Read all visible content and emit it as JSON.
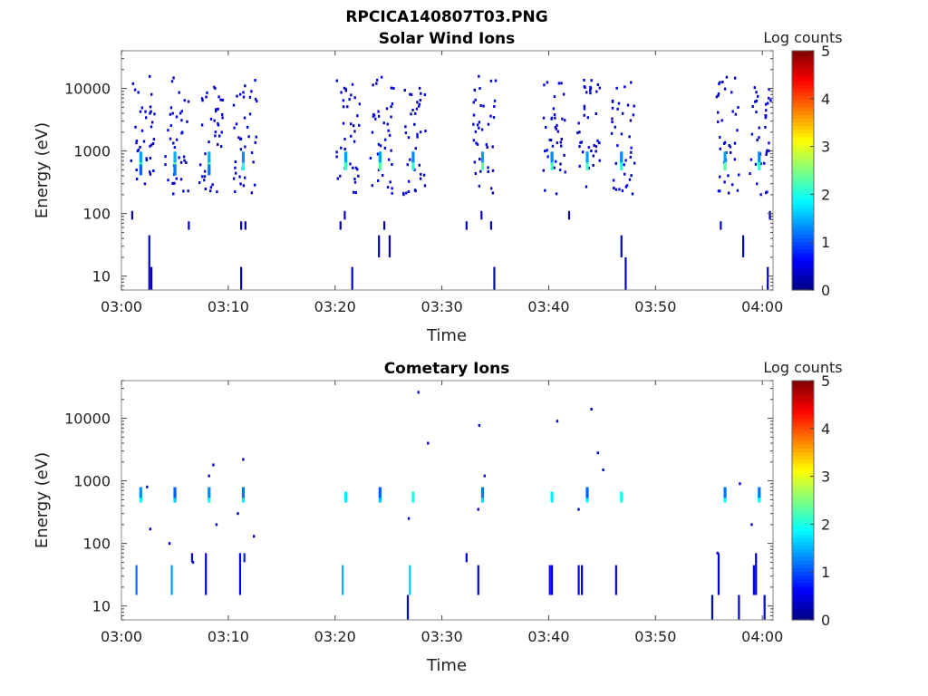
{
  "figure": {
    "title": "RPCICA140807T03.PNG"
  },
  "colorbar": {
    "label": "Log counts",
    "ticks": [
      0,
      1,
      2,
      3,
      4,
      5
    ],
    "colormap": "jet",
    "range": [
      0,
      5
    ]
  },
  "chart_data": [
    {
      "type": "heatmap",
      "title": "Solar Wind Ions",
      "xlabel": "Time",
      "ylabel": "Energy (eV)",
      "x_range_minutes": [
        0,
        61
      ],
      "x_ticks": [
        {
          "m": 0,
          "label": "03:00"
        },
        {
          "m": 10,
          "label": "03:10"
        },
        {
          "m": 20,
          "label": "03:20"
        },
        {
          "m": 30,
          "label": "03:30"
        },
        {
          "m": 40,
          "label": "03:40"
        },
        {
          "m": 50,
          "label": "03:50"
        },
        {
          "m": 60,
          "label": "04:00"
        }
      ],
      "y_scale": "log",
      "ylim": [
        6,
        40000
      ],
      "y_ticks": [
        {
          "v": 10,
          "label": "10"
        },
        {
          "v": 100,
          "label": "100"
        },
        {
          "v": 1000,
          "label": "1000"
        },
        {
          "v": 10000,
          "label": "10000"
        }
      ],
      "burst_minutes": [
        1.8,
        5.0,
        8.2,
        11.4,
        21.0,
        24.2,
        27.3,
        33.8,
        40.3,
        43.6,
        46.8,
        56.5,
        59.7
      ],
      "cells": [
        {
          "t": 1.8,
          "e": 600,
          "v": 2.2
        },
        {
          "t": 1.8,
          "e": 800,
          "v": 1.4
        },
        {
          "t": 1.8,
          "e": 500,
          "v": 1.1
        },
        {
          "t": 5.0,
          "e": 600,
          "v": 2.4
        },
        {
          "t": 5.0,
          "e": 800,
          "v": 1.5
        },
        {
          "t": 5.0,
          "e": 500,
          "v": 1.2
        },
        {
          "t": 8.2,
          "e": 600,
          "v": 2.3
        },
        {
          "t": 8.2,
          "e": 800,
          "v": 1.5
        },
        {
          "t": 8.2,
          "e": 500,
          "v": 1.2
        },
        {
          "t": 11.4,
          "e": 600,
          "v": 2.0
        },
        {
          "t": 11.4,
          "e": 800,
          "v": 1.3
        },
        {
          "t": 21.0,
          "e": 600,
          "v": 2.2
        },
        {
          "t": 21.0,
          "e": 800,
          "v": 1.4
        },
        {
          "t": 24.2,
          "e": 600,
          "v": 2.3
        },
        {
          "t": 24.2,
          "e": 800,
          "v": 1.4
        },
        {
          "t": 27.3,
          "e": 600,
          "v": 2.1
        },
        {
          "t": 27.3,
          "e": 800,
          "v": 1.3
        },
        {
          "t": 33.8,
          "e": 600,
          "v": 2.3
        },
        {
          "t": 33.8,
          "e": 800,
          "v": 1.4
        },
        {
          "t": 40.3,
          "e": 600,
          "v": 2.2
        },
        {
          "t": 40.3,
          "e": 800,
          "v": 1.3
        },
        {
          "t": 43.6,
          "e": 600,
          "v": 2.2
        },
        {
          "t": 43.6,
          "e": 800,
          "v": 1.4
        },
        {
          "t": 46.8,
          "e": 600,
          "v": 2.1
        },
        {
          "t": 46.8,
          "e": 800,
          "v": 1.3
        },
        {
          "t": 56.5,
          "e": 600,
          "v": 2.3
        },
        {
          "t": 56.5,
          "e": 800,
          "v": 1.4
        },
        {
          "t": 59.7,
          "e": 600,
          "v": 2.1
        },
        {
          "t": 59.7,
          "e": 800,
          "v": 1.3
        }
      ],
      "low_energy_streaks": [
        {
          "t": 2.6,
          "e1": 6,
          "e2": 45
        },
        {
          "t": 2.8,
          "e1": 6,
          "e2": 14
        },
        {
          "t": 1.0,
          "e1": 80,
          "e2": 110
        },
        {
          "t": 6.3,
          "e1": 55,
          "e2": 75
        },
        {
          "t": 11.2,
          "e1": 6,
          "e2": 14
        },
        {
          "t": 11.2,
          "e1": 55,
          "e2": 75
        },
        {
          "t": 11.6,
          "e1": 55,
          "e2": 75
        },
        {
          "t": 20.5,
          "e1": 55,
          "e2": 75
        },
        {
          "t": 20.9,
          "e1": 80,
          "e2": 110
        },
        {
          "t": 21.6,
          "e1": 6,
          "e2": 14
        },
        {
          "t": 24.1,
          "e1": 20,
          "e2": 45
        },
        {
          "t": 24.6,
          "e1": 55,
          "e2": 75
        },
        {
          "t": 25.1,
          "e1": 20,
          "e2": 45
        },
        {
          "t": 32.3,
          "e1": 55,
          "e2": 75
        },
        {
          "t": 33.7,
          "e1": 80,
          "e2": 110
        },
        {
          "t": 34.6,
          "e1": 55,
          "e2": 75
        },
        {
          "t": 34.9,
          "e1": 6,
          "e2": 14
        },
        {
          "t": 41.9,
          "e1": 80,
          "e2": 110
        },
        {
          "t": 46.8,
          "e1": 20,
          "e2": 45
        },
        {
          "t": 47.2,
          "e1": 6,
          "e2": 20
        },
        {
          "t": 56.1,
          "e1": 55,
          "e2": 75
        },
        {
          "t": 58.2,
          "e1": 20,
          "e2": 45
        },
        {
          "t": 60.5,
          "e1": 6,
          "e2": 14
        },
        {
          "t": 60.7,
          "e1": 80,
          "e2": 110
        }
      ]
    },
    {
      "type": "heatmap",
      "title": "Cometary Ions",
      "xlabel": "Time",
      "ylabel": "Energy (eV)",
      "x_range_minutes": [
        0,
        61
      ],
      "x_ticks": [
        {
          "m": 0,
          "label": "03:00"
        },
        {
          "m": 10,
          "label": "03:10"
        },
        {
          "m": 20,
          "label": "03:20"
        },
        {
          "m": 30,
          "label": "03:30"
        },
        {
          "m": 40,
          "label": "03:40"
        },
        {
          "m": 50,
          "label": "03:50"
        },
        {
          "m": 60,
          "label": "04:00"
        }
      ],
      "y_scale": "log",
      "ylim": [
        6,
        40000
      ],
      "y_ticks": [
        {
          "v": 10,
          "label": "10"
        },
        {
          "v": 100,
          "label": "100"
        },
        {
          "v": 1000,
          "label": "1000"
        },
        {
          "v": 10000,
          "label": "10000"
        }
      ],
      "cells": [
        {
          "t": 1.8,
          "e": 550,
          "v": 1.9
        },
        {
          "t": 1.8,
          "e": 650,
          "v": 1.3
        },
        {
          "t": 5.0,
          "e": 550,
          "v": 1.6
        },
        {
          "t": 5.0,
          "e": 650,
          "v": 1.1
        },
        {
          "t": 8.2,
          "e": 550,
          "v": 1.9
        },
        {
          "t": 8.2,
          "e": 650,
          "v": 1.3
        },
        {
          "t": 11.4,
          "e": 550,
          "v": 1.8
        },
        {
          "t": 11.4,
          "e": 650,
          "v": 1.2
        },
        {
          "t": 21.0,
          "e": 550,
          "v": 1.8
        },
        {
          "t": 24.2,
          "e": 550,
          "v": 1.6
        },
        {
          "t": 24.2,
          "e": 650,
          "v": 1.1
        },
        {
          "t": 27.3,
          "e": 550,
          "v": 2.0
        },
        {
          "t": 33.8,
          "e": 550,
          "v": 1.7
        },
        {
          "t": 33.8,
          "e": 650,
          "v": 1.2
        },
        {
          "t": 40.3,
          "e": 550,
          "v": 1.8
        },
        {
          "t": 43.6,
          "e": 550,
          "v": 1.8
        },
        {
          "t": 43.6,
          "e": 650,
          "v": 1.1
        },
        {
          "t": 46.8,
          "e": 550,
          "v": 2.0
        },
        {
          "t": 56.5,
          "e": 550,
          "v": 1.9
        },
        {
          "t": 56.5,
          "e": 650,
          "v": 1.2
        },
        {
          "t": 59.7,
          "e": 550,
          "v": 1.9
        },
        {
          "t": 59.7,
          "e": 650,
          "v": 1.2
        }
      ],
      "low_energy_streaks": [
        {
          "t": 1.4,
          "e1": 15,
          "e2": 45,
          "v": 1.2
        },
        {
          "t": 4.7,
          "e1": 15,
          "e2": 45,
          "v": 1.4
        },
        {
          "t": 6.6,
          "e1": 50,
          "e2": 70,
          "v": 0.5
        },
        {
          "t": 7.9,
          "e1": 15,
          "e2": 70,
          "v": 0.4
        },
        {
          "t": 11.1,
          "e1": 15,
          "e2": 70,
          "v": 0.6
        },
        {
          "t": 11.5,
          "e1": 50,
          "e2": 70,
          "v": 0.8
        },
        {
          "t": 20.7,
          "e1": 15,
          "e2": 45,
          "v": 1.5
        },
        {
          "t": 26.8,
          "e1": 6,
          "e2": 15,
          "v": 0.4
        },
        {
          "t": 27.0,
          "e1": 15,
          "e2": 45,
          "v": 1.6
        },
        {
          "t": 32.3,
          "e1": 50,
          "e2": 70,
          "v": 0.5
        },
        {
          "t": 33.4,
          "e1": 15,
          "e2": 45,
          "v": 0.4
        },
        {
          "t": 40.1,
          "e1": 15,
          "e2": 45,
          "v": 0.6
        },
        {
          "t": 40.3,
          "e1": 15,
          "e2": 45,
          "v": 0.5
        },
        {
          "t": 42.8,
          "e1": 15,
          "e2": 45,
          "v": 0.4
        },
        {
          "t": 43.1,
          "e1": 15,
          "e2": 45,
          "v": 0.4
        },
        {
          "t": 46.3,
          "e1": 15,
          "e2": 45,
          "v": 0.5
        },
        {
          "t": 55.3,
          "e1": 6,
          "e2": 15,
          "v": 0.4
        },
        {
          "t": 55.9,
          "e1": 15,
          "e2": 70,
          "v": 0.5
        },
        {
          "t": 57.8,
          "e1": 6,
          "e2": 15,
          "v": 0.4
        },
        {
          "t": 59.2,
          "e1": 15,
          "e2": 45,
          "v": 0.5
        },
        {
          "t": 59.4,
          "e1": 15,
          "e2": 70,
          "v": 0.4
        },
        {
          "t": 60.2,
          "e1": 6,
          "e2": 15,
          "v": 0.5
        }
      ]
    }
  ]
}
